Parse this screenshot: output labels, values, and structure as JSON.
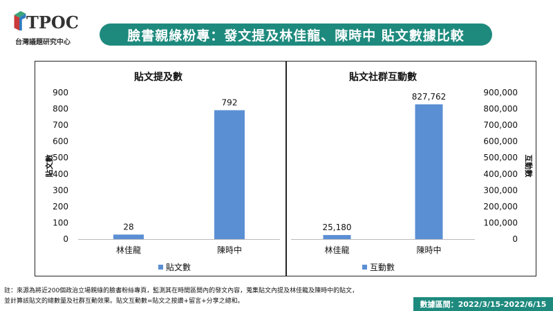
{
  "header": {
    "logo_text": "TPOC",
    "logo_sub": "台灣議題研究中心",
    "title": "臉書親綠粉專：發文提及林佳龍、陳時中 貼文數據比較"
  },
  "colors": {
    "brand": "#1e8a7e",
    "bar": "#5b8fd4"
  },
  "chart_data": [
    {
      "type": "bar",
      "title": "貼文提及數",
      "categories": [
        "林佳龍",
        "陳時中"
      ],
      "series": [
        {
          "name": "貼文數",
          "values": [
            28,
            792
          ]
        }
      ],
      "data_labels": [
        "28",
        "792"
      ],
      "ylabel": "貼文數",
      "ylim": [
        0,
        900
      ],
      "yticks": [
        "0",
        "100",
        "200",
        "300",
        "400",
        "500",
        "600",
        "700",
        "800",
        "900"
      ],
      "legend": "bottom",
      "grid": false
    },
    {
      "type": "bar",
      "title": "貼文社群互動數",
      "categories": [
        "林佳龍",
        "陳時中"
      ],
      "series": [
        {
          "name": "互動數",
          "values": [
            25180,
            827762
          ]
        }
      ],
      "data_labels": [
        "25,180",
        "827,762"
      ],
      "ylabel": "互動數",
      "ylim": [
        0,
        900000
      ],
      "yticks": [
        "0",
        "100,000",
        "200,000",
        "300,000",
        "400,000",
        "500,000",
        "600,000",
        "700,000",
        "800,000",
        "900,000"
      ],
      "y_axis_side": "right",
      "legend": "bottom",
      "grid": false
    }
  ],
  "footer": {
    "note_line1": "註：來源為將近200個政治立場親綠的臉書粉絲專頁，監測其在時間區間內的發文內容，蒐集貼文內提及林佳龍及陳時中的貼文，",
    "note_line2": "並計算該貼文的總數量及社群互動效果。貼文互動數=貼文之按讚+留言+分享之總和。",
    "date_range": "數據區間：2022/3/15-2022/6/15"
  }
}
